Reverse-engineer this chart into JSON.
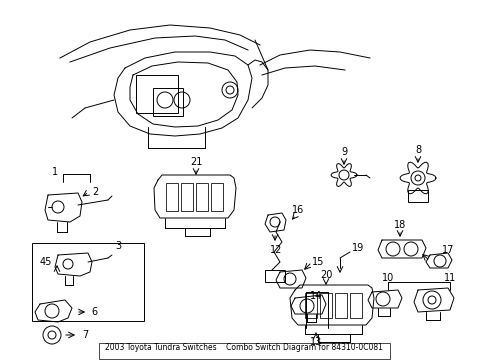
{
  "title": "2003 Toyota Tundra Switches\nCombo Switch Diagram for 84310-0C081",
  "bg_color": "#ffffff",
  "line_color": "#000000",
  "fig_width": 4.89,
  "fig_height": 3.6,
  "dpi": 100
}
